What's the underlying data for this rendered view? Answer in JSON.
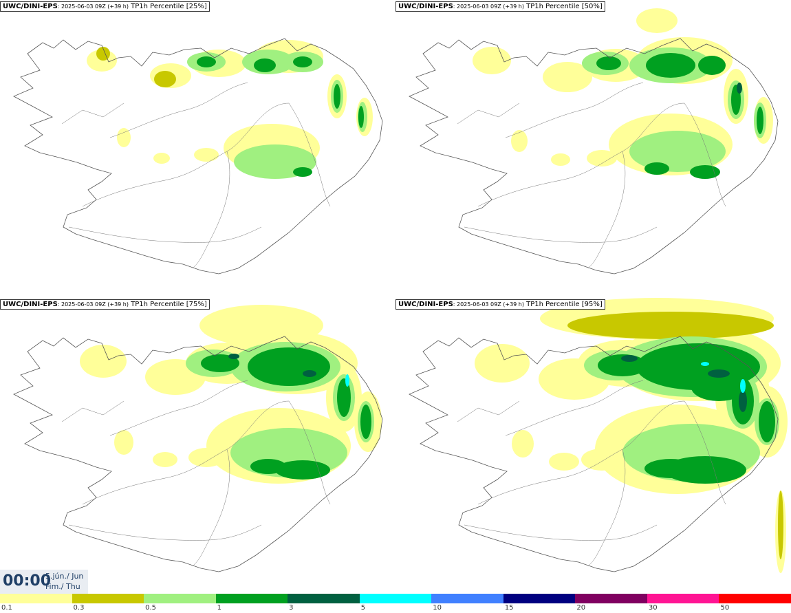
{
  "panels": [
    {
      "source": "UWC/DINI-EPS",
      "run": ": 2025-06-03 09Z (+39 h)",
      "variable": " TP1h Percentile [25%]",
      "percentile": 25
    },
    {
      "source": "UWC/DINI-EPS",
      "run": ": 2025-06-03 09Z (+39 h)",
      "variable": " TP1h Percentile [50%]",
      "percentile": 50
    },
    {
      "source": "UWC/DINI-EPS",
      "run": ": 2025-06-03 09Z (+39 h)",
      "variable": " TP1h Percentile [75%]",
      "percentile": 75
    },
    {
      "source": "UWC/DINI-EPS",
      "run": ": 2025-06-03 09Z (+39 h)",
      "variable": " TP1h Percentile [95%]",
      "percentile": 95
    }
  ],
  "valid_time": {
    "clock": "00:00",
    "date_line": "5.jún./ Jun",
    "day_line": "Fim./ Thu"
  },
  "colorbar": {
    "levels": [
      "0.1",
      "0.3",
      "0.5",
      "1",
      "3",
      "5",
      "10",
      "15",
      "20",
      "30",
      "50"
    ],
    "colors": [
      "#ffff99",
      "#c8c800",
      "#a0f080",
      "#00a020",
      "#006040",
      "#00ffff",
      "#4080ff",
      "#000080",
      "#800060",
      "#ff1493",
      "#ff0000"
    ]
  }
}
